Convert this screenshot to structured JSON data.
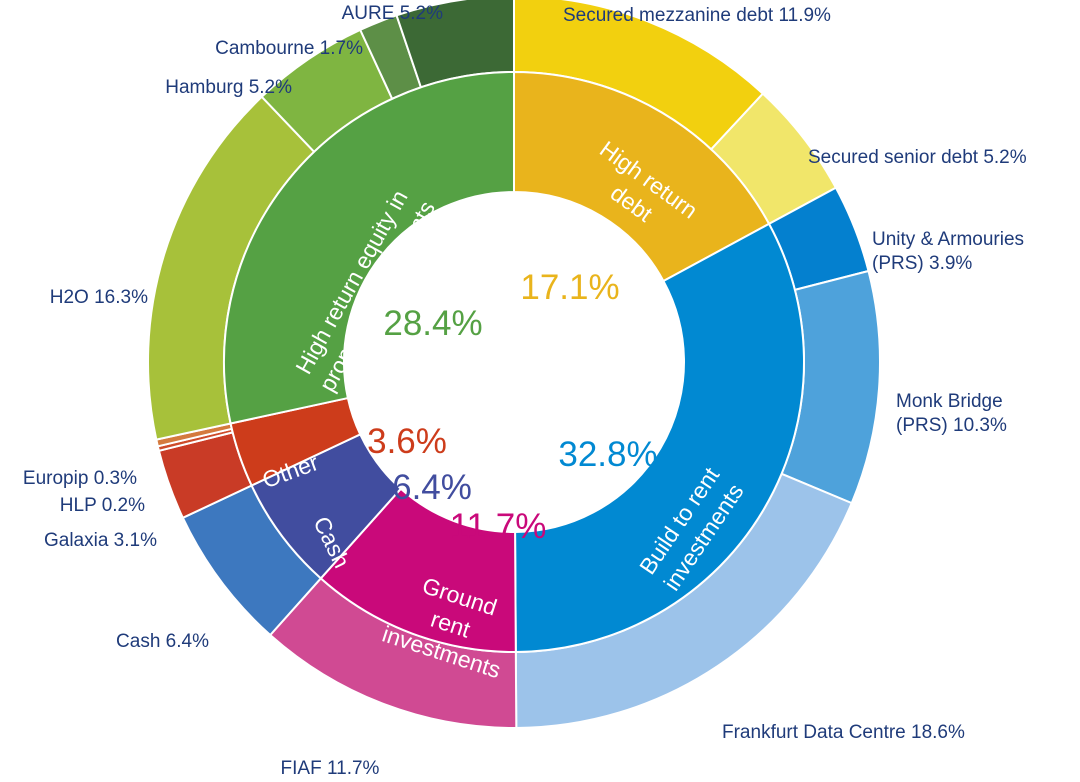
{
  "chart_data": {
    "type": "pie",
    "subtype": "sunburst-donut",
    "categories": [
      {
        "name": "High return debt",
        "value": 17.1,
        "color": "#e9b41c",
        "label_lines": [
          "High return",
          "debt"
        ],
        "children": [
          {
            "name": "Secured mezzanine debt",
            "value": 11.9,
            "label": "Secured mezzanine debt 11.9%",
            "color": "#f2d00f"
          },
          {
            "name": "Secured senior debt",
            "value": 5.2,
            "label": "Secured senior debt 5.2%",
            "color": "#f1e66a"
          }
        ]
      },
      {
        "name": "Build to rent investments",
        "value": 32.8,
        "color": "#0189d2",
        "label_lines": [
          "Build to rent",
          "investments"
        ],
        "children": [
          {
            "name": "Unity & Armouries (PRS)",
            "value": 3.9,
            "label_lines": [
              "Unity & Armouries",
              "(PRS) 3.9%"
            ],
            "color": "#0480cf"
          },
          {
            "name": "Monk Bridge (PRS)",
            "value": 10.3,
            "label_lines": [
              "Monk Bridge",
              "(PRS) 10.3%"
            ],
            "color": "#4ea2db"
          },
          {
            "name": "Frankfurt Data Centre",
            "value": 18.6,
            "label": "Frankfurt Data Centre 18.6%",
            "color": "#9cc3ea"
          }
        ]
      },
      {
        "name": "Ground rent investments",
        "value": 11.7,
        "color": "#c9097a",
        "label_lines": [
          "Ground",
          "rent",
          "investments"
        ],
        "children": [
          {
            "name": "FIAF",
            "value": 11.7,
            "label": "FIAF 11.7%",
            "color": "#d04a93"
          }
        ]
      },
      {
        "name": "Cash",
        "value": 6.4,
        "color": "#414d9f",
        "label_lines": [
          "Cash"
        ],
        "children": [
          {
            "name": "Cash",
            "value": 6.4,
            "label": "Cash 6.4%",
            "color": "#3d78bf"
          }
        ]
      },
      {
        "name": "Other",
        "value": 3.6,
        "color": "#cd3c1b",
        "label_lines": [
          "Other"
        ],
        "children": [
          {
            "name": "Galaxia",
            "value": 3.1,
            "label": "Galaxia 3.1%",
            "color": "#c93b26"
          },
          {
            "name": "HLP",
            "value": 0.2,
            "label": "HLP 0.2%",
            "color": "#ce4b2a"
          },
          {
            "name": "Europip",
            "value": 0.3,
            "label": "Europip 0.3%",
            "color": "#d47a3e"
          }
        ]
      },
      {
        "name": "High return equity in property investments",
        "value": 28.4,
        "color": "#55a144",
        "label_lines": [
          "High return equity in",
          "property investments"
        ],
        "children": [
          {
            "name": "H2O",
            "value": 16.3,
            "label": "H2O 16.3%",
            "color": "#a7c13a"
          },
          {
            "name": "Hamburg",
            "value": 5.2,
            "label": "Hamburg 5.2%",
            "color": "#7fb541"
          },
          {
            "name": "Cambourne",
            "value": 1.7,
            "label": "Cambourne 1.7%",
            "color": "#5d8f47"
          },
          {
            "name": "AURE",
            "value": 5.2,
            "label": "AURE 5.2%",
            "color": "#3c6935"
          }
        ]
      }
    ],
    "center_labels": [
      {
        "text": "17.1%",
        "color": "#e9b41c"
      },
      {
        "text": "32.8%",
        "color": "#0189d2"
      },
      {
        "text": "11.7%",
        "color": "#c9097a"
      },
      {
        "text": "6.4%",
        "color": "#414d9f"
      },
      {
        "text": "3.6%",
        "color": "#cd3c1b"
      },
      {
        "text": "28.4%",
        "color": "#55a144"
      }
    ],
    "label_color": "#1f3b7a"
  }
}
